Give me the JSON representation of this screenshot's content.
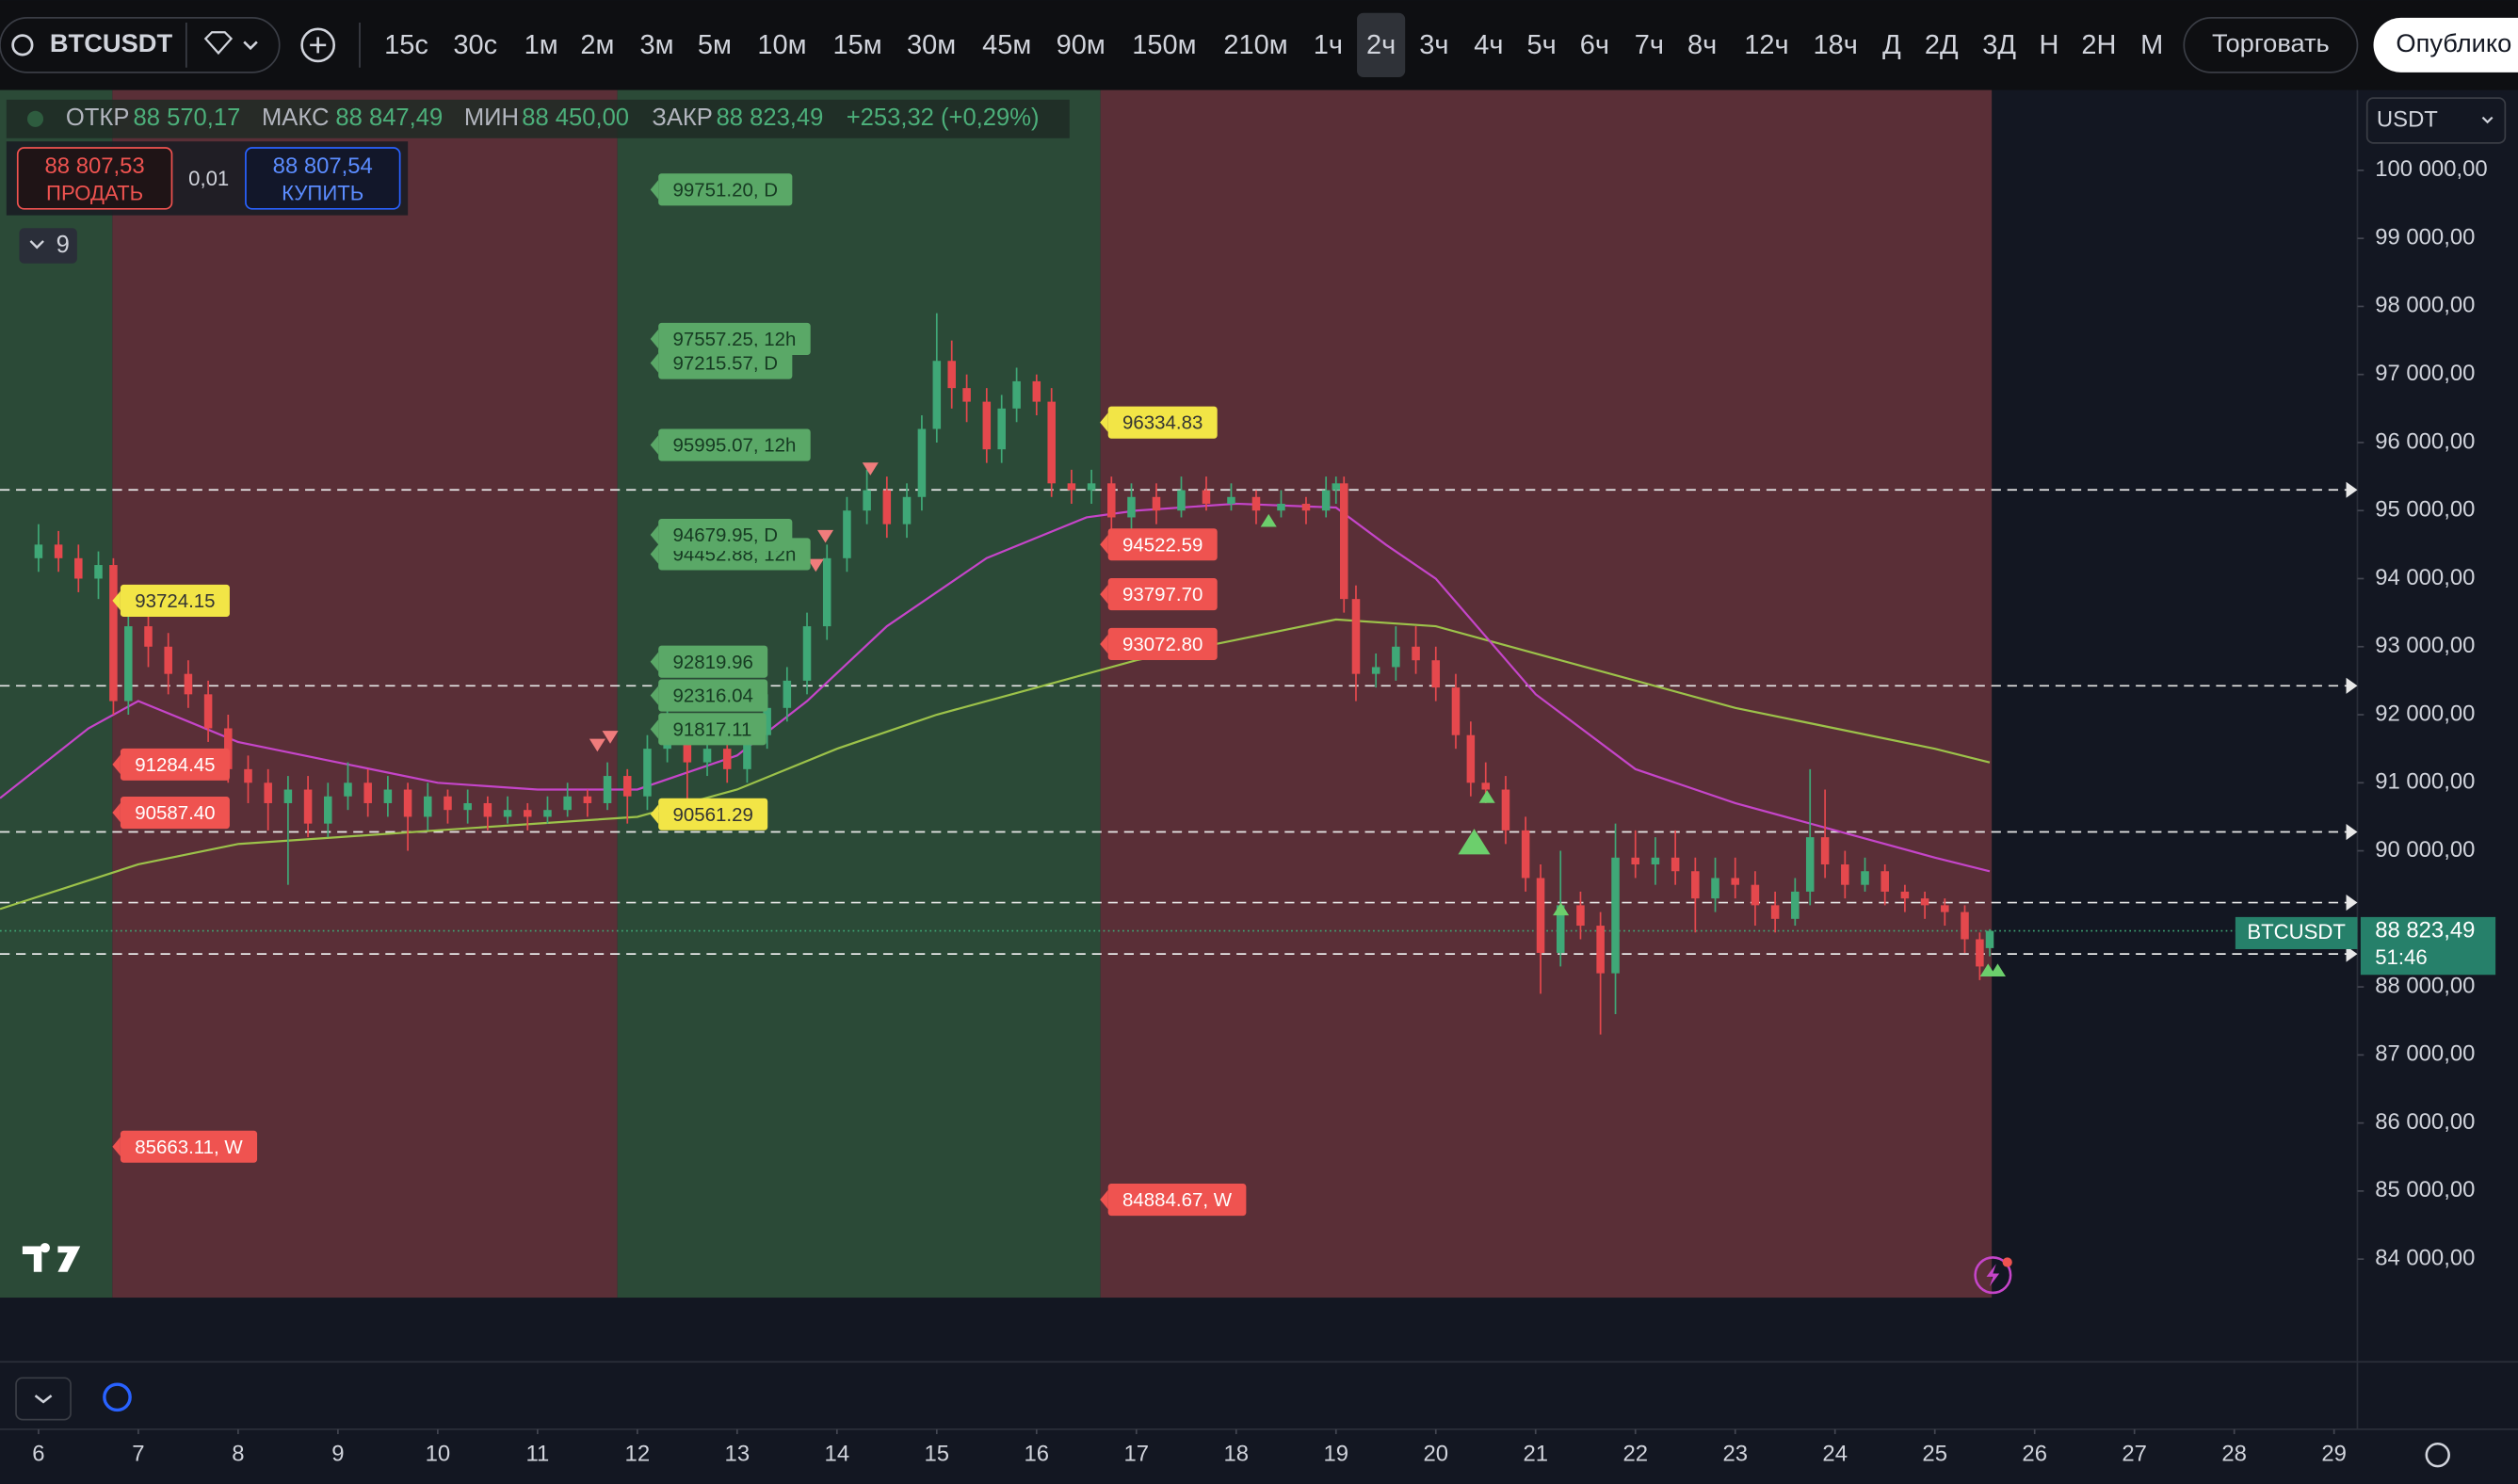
{
  "toolbar": {
    "symbol": "BTCUSDT",
    "intervals": [
      "15с",
      "30с",
      "1м",
      "2м",
      "3м",
      "5м",
      "10м",
      "15м",
      "30м",
      "45м",
      "90м",
      "150м",
      "210м",
      "1ч",
      "2ч",
      "3ч",
      "4ч",
      "5ч",
      "6ч",
      "7ч",
      "8ч",
      "12ч",
      "18ч",
      "Д",
      "2Д",
      "3Д",
      "Н",
      "2Н",
      "М"
    ],
    "active": 14,
    "trade": "Торговать",
    "publish": "Опублико"
  },
  "legend": {
    "open_label": "ОТКР",
    "open": "88 570,17",
    "high_label": "МАКС",
    "high": "88 847,49",
    "low_label": "МИН",
    "low": "88 450,00",
    "close_label": "ЗАКР",
    "close": "88 823,49",
    "change": "+253,32 (+0,29%)"
  },
  "order": {
    "sell_price": "88 807,53",
    "sell": "ПРОДАТЬ",
    "qty": "0,01",
    "buy_price": "88 807,54",
    "buy": "КУПИТЬ"
  },
  "indicators_count": "9",
  "currency": "USDT",
  "last_price": {
    "symbol": "BTCUSDT",
    "price": "88 823,49",
    "countdown": "51:46"
  },
  "level_labels": [
    {
      "text": "99751.20, D",
      "style": "green"
    },
    {
      "text": "97557.25, 12h",
      "style": "green"
    },
    {
      "text": "97215.57, D",
      "style": "green"
    },
    {
      "text": "95995.07, 12h",
      "style": "green"
    },
    {
      "text": "94452.88, 12h",
      "style": "green"
    },
    {
      "text": "94679.95, D",
      "style": "green"
    },
    {
      "text": "92819.96",
      "style": "green"
    },
    {
      "text": "92316.04",
      "style": "green"
    },
    {
      "text": "91817.11",
      "style": "green"
    },
    {
      "text": "90561.29",
      "style": "yellow"
    },
    {
      "text": "93724.15",
      "style": "yellow"
    },
    {
      "text": "91284.45",
      "style": "red"
    },
    {
      "text": "90587.40",
      "style": "red"
    },
    {
      "text": "85663.11, W",
      "style": "red"
    },
    {
      "text": "96334.83",
      "style": "yellow"
    },
    {
      "text": "94522.59",
      "style": "red"
    },
    {
      "text": "93797.70",
      "style": "red"
    },
    {
      "text": "93072.80",
      "style": "red"
    },
    {
      "text": "84884.67, W",
      "style": "red"
    }
  ],
  "chart_data": {
    "type": "candlestick",
    "up_color": "#3fa877",
    "down_color": "#e5484d",
    "xlim": [
      5.614,
      29.234
    ],
    "ylim": [
      83434,
      101180
    ],
    "xticks": [
      6,
      7,
      8,
      9,
      10,
      11,
      12,
      13,
      14,
      15,
      16,
      17,
      18,
      19,
      20,
      21,
      22,
      23,
      24,
      25,
      26,
      27,
      28,
      29
    ],
    "yticks": [
      {
        "value": 100000,
        "label": "100 000,00"
      },
      {
        "value": 99000,
        "label": "99 000,00"
      },
      {
        "value": 98000,
        "label": "98 000,00"
      },
      {
        "value": 97000,
        "label": "97 000,00"
      },
      {
        "value": 96000,
        "label": "96 000,00"
      },
      {
        "value": 95000,
        "label": "95 000,00"
      },
      {
        "value": 94000,
        "label": "94 000,00"
      },
      {
        "value": 93000,
        "label": "93 000,00"
      },
      {
        "value": 92000,
        "label": "92 000,00"
      },
      {
        "value": 91000,
        "label": "91 000,00"
      },
      {
        "value": 90000,
        "label": "90 000,00"
      },
      {
        "value": 88000,
        "label": "88 000,00"
      },
      {
        "value": 87000,
        "label": "87 000,00"
      },
      {
        "value": 86000,
        "label": "86 000,00"
      },
      {
        "value": 85000,
        "label": "85 000,00"
      },
      {
        "value": 84000,
        "label": "84 000,00"
      }
    ],
    "bands": [
      {
        "from": 5.614,
        "to": 6.74,
        "color": "#2b4a37"
      },
      {
        "from": 6.74,
        "to": 11.8,
        "color": "#5a2f37"
      },
      {
        "from": 11.8,
        "to": 16.64,
        "color": "#2b4a37"
      },
      {
        "from": 16.64,
        "to": 25.57,
        "color": "#5a2f37"
      }
    ],
    "levels": [
      95304,
      92425,
      90277,
      89239,
      88484
    ],
    "last": 88823.49,
    "x": [
      6.0,
      6.2,
      6.4,
      6.6,
      6.75,
      6.9,
      7.1,
      7.3,
      7.5,
      7.7,
      7.9,
      8.1,
      8.3,
      8.5,
      8.7,
      8.9,
      9.1,
      9.3,
      9.5,
      9.7,
      9.9,
      10.1,
      10.3,
      10.5,
      10.7,
      10.9,
      11.1,
      11.3,
      11.5,
      11.7,
      11.9,
      12.1,
      12.3,
      12.5,
      12.7,
      12.9,
      13.1,
      13.3,
      13.5,
      13.7,
      13.9,
      14.1,
      14.3,
      14.5,
      14.7,
      14.85,
      15.0,
      15.15,
      15.3,
      15.5,
      15.65,
      15.8,
      16.0,
      16.15,
      16.35,
      16.55,
      16.75,
      16.95,
      17.2,
      17.45,
      17.7,
      17.95,
      18.2,
      18.45,
      18.7,
      18.9,
      19.0,
      19.08,
      19.2,
      19.4,
      19.6,
      19.8,
      20.0,
      20.2,
      20.35,
      20.5,
      20.7,
      20.9,
      21.05,
      21.25,
      21.45,
      21.65,
      21.8,
      22.0,
      22.2,
      22.4,
      22.6,
      22.8,
      23.0,
      23.2,
      23.4,
      23.6,
      23.75,
      23.9,
      24.1,
      24.3,
      24.5,
      24.7,
      24.9,
      25.1,
      25.3,
      25.45,
      25.55
    ],
    "ohlc": [
      [
        94300,
        94800,
        94100,
        94500
      ],
      [
        94500,
        94700,
        94100,
        94300
      ],
      [
        94300,
        94500,
        93800,
        94000
      ],
      [
        94000,
        94400,
        93700,
        94200
      ],
      [
        94200,
        94300,
        92000,
        92200
      ],
      [
        92200,
        93800,
        92000,
        93300
      ],
      [
        93300,
        93500,
        92700,
        93000
      ],
      [
        93000,
        93200,
        92300,
        92600
      ],
      [
        92600,
        92800,
        92100,
        92300
      ],
      [
        92300,
        92500,
        91600,
        91800
      ],
      [
        91800,
        92000,
        91000,
        91200
      ],
      [
        91200,
        91400,
        90700,
        91000
      ],
      [
        91000,
        91200,
        90300,
        90700
      ],
      [
        90700,
        91100,
        89500,
        90900
      ],
      [
        90900,
        91100,
        90200,
        90400
      ],
      [
        90400,
        91000,
        90200,
        90800
      ],
      [
        90800,
        91300,
        90600,
        91000
      ],
      [
        91000,
        91200,
        90500,
        90700
      ],
      [
        90700,
        91100,
        90500,
        90900
      ],
      [
        90900,
        91000,
        90000,
        90500
      ],
      [
        90500,
        91000,
        90300,
        90800
      ],
      [
        90800,
        90900,
        90400,
        90600
      ],
      [
        90600,
        90900,
        90400,
        90700
      ],
      [
        90700,
        90800,
        90300,
        90500
      ],
      [
        90500,
        90800,
        90400,
        90600
      ],
      [
        90600,
        90700,
        90300,
        90500
      ],
      [
        90500,
        90800,
        90400,
        90600
      ],
      [
        90600,
        91000,
        90500,
        90800
      ],
      [
        90800,
        90900,
        90500,
        90700
      ],
      [
        90700,
        91300,
        90600,
        91100
      ],
      [
        91100,
        91200,
        90400,
        90800
      ],
      [
        90800,
        91700,
        90600,
        91500
      ],
      [
        91500,
        92500,
        91300,
        91700
      ],
      [
        91700,
        91900,
        90600,
        91300
      ],
      [
        91300,
        91700,
        91100,
        91500
      ],
      [
        91500,
        91600,
        91000,
        91200
      ],
      [
        91200,
        91900,
        91000,
        91700
      ],
      [
        91700,
        92300,
        91500,
        92100
      ],
      [
        92100,
        92700,
        91900,
        92500
      ],
      [
        92500,
        93500,
        92300,
        93300
      ],
      [
        93300,
        94500,
        93100,
        94300
      ],
      [
        94300,
        95200,
        94100,
        95000
      ],
      [
        95000,
        95600,
        94800,
        95300
      ],
      [
        95300,
        95500,
        94600,
        94800
      ],
      [
        94800,
        95400,
        94600,
        95200
      ],
      [
        95200,
        96400,
        95000,
        96200
      ],
      [
        96200,
        97900,
        96000,
        97200
      ],
      [
        97200,
        97500,
        96500,
        96800
      ],
      [
        96800,
        97000,
        96300,
        96600
      ],
      [
        96600,
        96800,
        95700,
        95900
      ],
      [
        95900,
        96700,
        95700,
        96500
      ],
      [
        96500,
        97100,
        96300,
        96900
      ],
      [
        96900,
        97000,
        96400,
        96600
      ],
      [
        96600,
        96800,
        95200,
        95400
      ],
      [
        95400,
        95600,
        95100,
        95300
      ],
      [
        95300,
        95600,
        95100,
        95400
      ],
      [
        95400,
        95500,
        94400,
        94900
      ],
      [
        94900,
        95400,
        94700,
        95200
      ],
      [
        95200,
        95400,
        94800,
        95000
      ],
      [
        95000,
        95500,
        94900,
        95300
      ],
      [
        95300,
        95500,
        95000,
        95100
      ],
      [
        95100,
        95400,
        95000,
        95200
      ],
      [
        95200,
        95300,
        94800,
        95000
      ],
      [
        95000,
        95300,
        94900,
        95100
      ],
      [
        95100,
        95200,
        94800,
        95000
      ],
      [
        95000,
        95500,
        94900,
        95300
      ],
      [
        95300,
        95500,
        95100,
        95400
      ],
      [
        95400,
        95500,
        93500,
        93700
      ],
      [
        93700,
        93900,
        92200,
        92600
      ],
      [
        92600,
        92900,
        92400,
        92700
      ],
      [
        92700,
        93300,
        92500,
        93000
      ],
      [
        93000,
        93300,
        92600,
        92800
      ],
      [
        92800,
        93000,
        92200,
        92400
      ],
      [
        92400,
        92600,
        91500,
        91700
      ],
      [
        91700,
        91900,
        90800,
        91000
      ],
      [
        91000,
        91300,
        90700,
        90900
      ],
      [
        90900,
        91100,
        90100,
        90300
      ],
      [
        90300,
        90500,
        89400,
        89600
      ],
      [
        89600,
        89800,
        87900,
        88500
      ],
      [
        88500,
        90000,
        88300,
        89200
      ],
      [
        89200,
        89400,
        88700,
        88900
      ],
      [
        88900,
        89100,
        87300,
        88200
      ],
      [
        88200,
        90400,
        87600,
        89900
      ],
      [
        89900,
        90300,
        89600,
        89800
      ],
      [
        89800,
        90200,
        89500,
        89900
      ],
      [
        89900,
        90300,
        89500,
        89700
      ],
      [
        89700,
        89900,
        88800,
        89300
      ],
      [
        89300,
        89900,
        89100,
        89600
      ],
      [
        89600,
        89900,
        89300,
        89500
      ],
      [
        89500,
        89700,
        88900,
        89200
      ],
      [
        89200,
        89400,
        88800,
        89000
      ],
      [
        89000,
        89600,
        88900,
        89400
      ],
      [
        89400,
        91200,
        89200,
        90200
      ],
      [
        90200,
        90900,
        89600,
        89800
      ],
      [
        89800,
        90000,
        89300,
        89500
      ],
      [
        89500,
        89900,
        89400,
        89700
      ],
      [
        89700,
        89800,
        89200,
        89400
      ],
      [
        89400,
        89500,
        89100,
        89300
      ],
      [
        89300,
        89400,
        89000,
        89200
      ],
      [
        89200,
        89300,
        88900,
        89100
      ],
      [
        89100,
        89200,
        88500,
        88700
      ],
      [
        88700,
        88800,
        88100,
        88300
      ],
      [
        88570.17,
        88847.49,
        88450,
        88823.49
      ]
    ],
    "ma_fast": {
      "color": "#c545c9",
      "x": [
        5.614,
        6.5,
        7,
        7.5,
        8,
        9,
        10,
        11,
        12,
        13,
        13.7,
        14.5,
        15.5,
        16.5,
        17,
        18,
        19,
        19.5,
        20,
        21,
        22,
        23,
        24,
        25,
        25.55
      ],
      "values": [
        90773,
        91800,
        92200,
        91900,
        91600,
        91300,
        91000,
        90900,
        90900,
        91400,
        92200,
        93300,
        94300,
        94900,
        95000,
        95100,
        95044,
        94500,
        94000,
        92300,
        91200,
        90700,
        90300,
        89900,
        89700
      ]
    },
    "ma_slow": {
      "color": "#9cc24a",
      "x": [
        5.614,
        7,
        8,
        9,
        10,
        11,
        12,
        13,
        14,
        15,
        16,
        17,
        18,
        19,
        20,
        21,
        22,
        23,
        24,
        25,
        25.55
      ],
      "values": [
        89145,
        89800,
        90100,
        90200,
        90300,
        90400,
        90500,
        90900,
        91500,
        92000,
        92400,
        92800,
        93100,
        93400,
        93300,
        92900,
        92500,
        92100,
        91800,
        91500,
        91300
      ]
    }
  }
}
